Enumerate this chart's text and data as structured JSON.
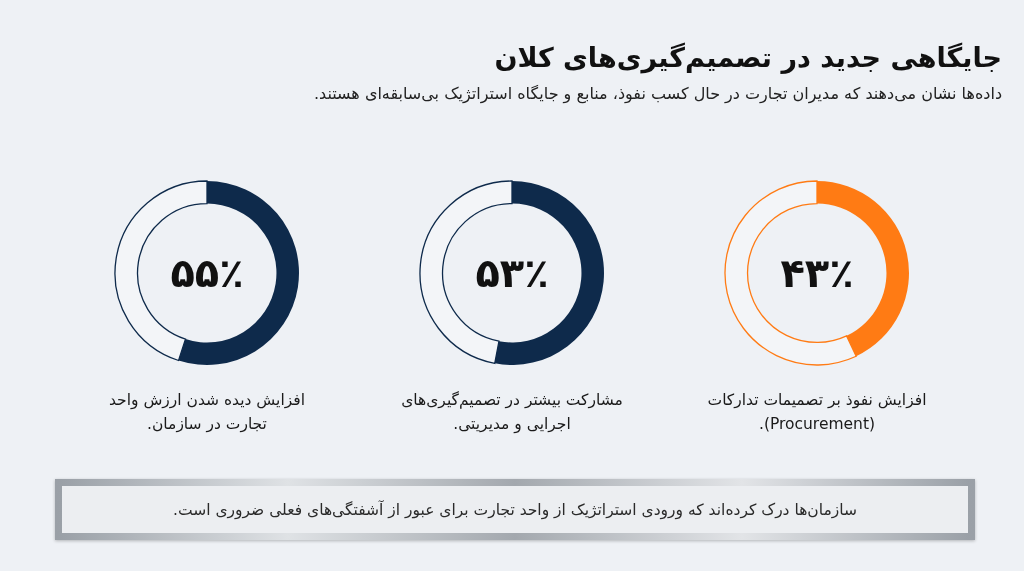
{
  "chart_data": [
    {
      "type": "other",
      "title": "جایگاهی جدید در تصمیم‌گیری‌های کلان",
      "subtitle": "داده‌ها نشان می‌دهند که مدیران تجارت در حال کسب نفوذ، منابع و جایگاه استراتژیک بی‌سابقه‌ای هستند."
    },
    {
      "type": "donut",
      "title": "افزایش نفوذ بر تصمیمات تدارکات (Procurement).",
      "categories": [
        null,
        null
      ],
      "values": [
        43,
        57
      ],
      "colors": [
        "#ff7b14",
        "#f3f5f8"
      ],
      "value_labels": [
        "۴۳٪",
        null
      ]
    },
    {
      "type": "donut",
      "title": "مشارکت بیشتر در تصمیم‌گیری‌های اجرایی و مدیریتی.",
      "categories": [
        null,
        null
      ],
      "values": [
        53,
        47
      ],
      "colors": [
        "#0e2a4b",
        "#f3f5f8"
      ],
      "value_labels": [
        "۵۳٪",
        null
      ]
    },
    {
      "type": "donut",
      "title": "افزایش دیده شدن ارزش واحد تجارت در سازمان.",
      "categories": [
        null,
        null
      ],
      "values": [
        55,
        45
      ],
      "colors": [
        "#0e2a4b",
        "#f3f5f8"
      ],
      "value_labels": [
        "۵۵٪",
        null
      ]
    },
    {
      "type": "other",
      "annotations": [
        "سازمان‌ها درک کرده‌اند که ورودی استراتژیک از واحد تجارت برای عبور از آشفتگی‌های فعلی ضروری است."
      ]
    }
  ]
}
